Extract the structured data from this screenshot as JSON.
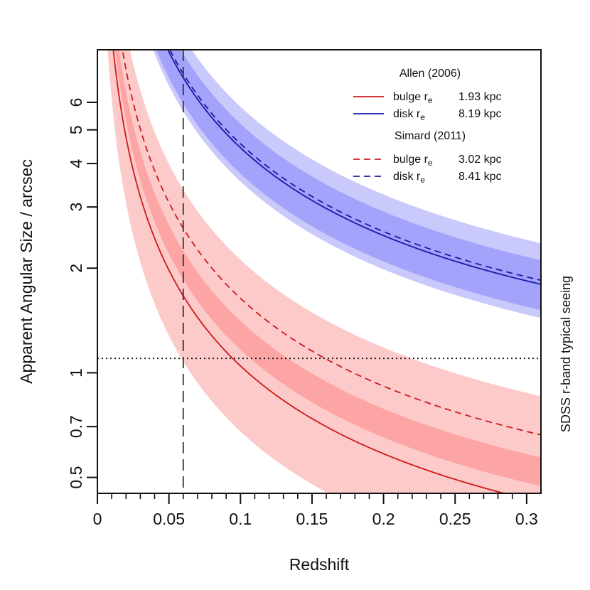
{
  "chart_data": {
    "type": "line",
    "x_scale": "linear",
    "y_scale": "log",
    "xlim": [
      0,
      0.31
    ],
    "ylim": [
      0.45,
      8.5
    ],
    "xlabel": "Redshift",
    "ylabel": "Apparent Angular Size / arcsec",
    "right_label": "SDSS r-band typical seeing",
    "x_ticks": [
      {
        "value": 0,
        "label": "0"
      },
      {
        "value": 0.05,
        "label": "0.05"
      },
      {
        "value": 0.1,
        "label": "0.1"
      },
      {
        "value": 0.15,
        "label": "0.15"
      },
      {
        "value": 0.2,
        "label": "0.2"
      },
      {
        "value": 0.25,
        "label": "0.25"
      },
      {
        "value": 0.3,
        "label": "0.3"
      }
    ],
    "x_minor_ticks": [
      0.01,
      0.02,
      0.03,
      0.04,
      0.06,
      0.07,
      0.08,
      0.09,
      0.11,
      0.12,
      0.13,
      0.14,
      0.16,
      0.17,
      0.18,
      0.19,
      0.21,
      0.22,
      0.23,
      0.24,
      0.26,
      0.27,
      0.28,
      0.29
    ],
    "y_ticks": [
      {
        "value": 0.5,
        "label": "0.5"
      },
      {
        "value": 0.7,
        "label": "0.7"
      },
      {
        "value": 1,
        "label": "1"
      },
      {
        "value": 2,
        "label": "2"
      },
      {
        "value": 3,
        "label": "3"
      },
      {
        "value": 4,
        "label": "4"
      },
      {
        "value": 5,
        "label": "5"
      },
      {
        "value": 6,
        "label": "6"
      }
    ],
    "reference_lines": {
      "seeing_arcsec": 1.1,
      "vertical_redshift": 0.06
    },
    "colors": {
      "bulge_line": "#cc1a1a",
      "disk_line": "#1a1aa6",
      "bulge_band_inner": "#fda4a4",
      "bulge_band_outer": "#fdcaca",
      "disk_band_inner": "#a3a3fb",
      "disk_band_outer": "#c9c9fb",
      "reference": "#111111"
    },
    "bands": [
      {
        "name": "disk outer band",
        "kind": "disk",
        "level": "outer",
        "low_kpc": 6.55,
        "high_kpc": 10.75
      },
      {
        "name": "disk inner band",
        "kind": "disk",
        "level": "inner",
        "low_kpc": 6.9,
        "high_kpc": 9.6
      },
      {
        "name": "bulge outer band",
        "kind": "bulge",
        "level": "outer",
        "low_kpc": 1.25,
        "high_kpc": 3.9
      },
      {
        "name": "bulge inner band",
        "kind": "bulge",
        "level": "inner",
        "low_kpc": 2.15,
        "high_kpc": 2.6
      }
    ],
    "series": [
      {
        "name": "Allen (2006) bulge",
        "kind": "bulge",
        "style": "solid",
        "re_kpc": 1.93
      },
      {
        "name": "Allen (2006) disk",
        "kind": "disk",
        "style": "solid",
        "re_kpc": 8.19
      },
      {
        "name": "Simard (2011) bulge",
        "kind": "bulge",
        "style": "dashed",
        "re_kpc": 3.02
      },
      {
        "name": "Simard (2011) disk",
        "kind": "disk",
        "style": "dashed",
        "re_kpc": 8.41
      }
    ],
    "legend": {
      "position": "top-right",
      "groups": [
        {
          "title": "Allen (2006)",
          "entries": [
            {
              "label": "bulge",
              "subscript": "e",
              "value": "1.93 kpc",
              "kind": "bulge",
              "style": "solid"
            },
            {
              "label": "disk",
              "subscript": "e",
              "value": "8.19 kpc",
              "kind": "disk",
              "style": "solid"
            }
          ]
        },
        {
          "title": "Simard (2011)",
          "entries": [
            {
              "label": "bulge",
              "subscript": "e",
              "value": "3.02 kpc",
              "kind": "bulge",
              "style": "dashed"
            },
            {
              "label": "disk",
              "subscript": "e",
              "value": "8.41 kpc",
              "kind": "disk",
              "style": "dashed"
            }
          ]
        }
      ]
    }
  }
}
